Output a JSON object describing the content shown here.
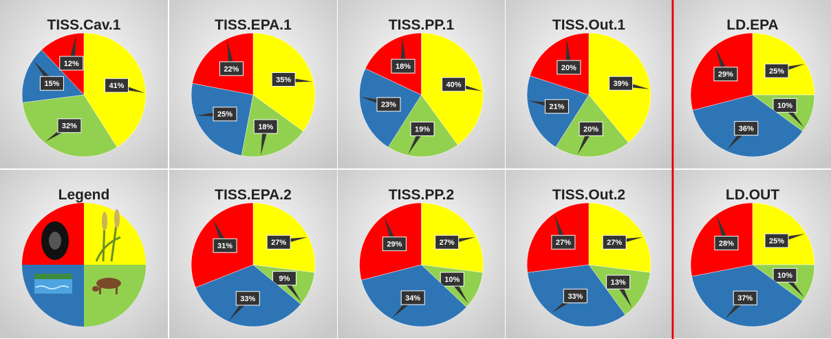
{
  "chart_data": [
    {
      "type": "pie",
      "title": "TISS.Cav.1",
      "values": [
        41,
        32,
        15,
        12
      ],
      "value_labels": [
        "41%",
        "32%",
        "15%",
        "12%"
      ],
      "colors": [
        "#ffff00",
        "#92d050",
        "#2e75b6",
        "#ff0000"
      ]
    },
    {
      "type": "pie",
      "title": "TISS.EPA.1",
      "values": [
        35,
        18,
        25,
        22
      ],
      "value_labels": [
        "35%",
        "18%",
        "25%",
        "22%"
      ],
      "colors": [
        "#ffff00",
        "#92d050",
        "#2e75b6",
        "#ff0000"
      ]
    },
    {
      "type": "pie",
      "title": "TISS.PP.1",
      "values": [
        40,
        19,
        23,
        18
      ],
      "value_labels": [
        "40%",
        "19%",
        "23%",
        "18%"
      ],
      "colors": [
        "#ffff00",
        "#92d050",
        "#2e75b6",
        "#ff0000"
      ]
    },
    {
      "type": "pie",
      "title": "TISS.Out.1",
      "values": [
        39,
        20,
        21,
        20
      ],
      "value_labels": [
        "39%",
        "20%",
        "21%",
        "20%"
      ],
      "colors": [
        "#ffff00",
        "#92d050",
        "#2e75b6",
        "#ff0000"
      ]
    },
    {
      "type": "pie",
      "title": "LD.EPA",
      "values": [
        25,
        10,
        36,
        29
      ],
      "value_labels": [
        "25%",
        "10%",
        "36%",
        "29%"
      ],
      "colors": [
        "#ffff00",
        "#92d050",
        "#2e75b6",
        "#ff0000"
      ]
    },
    {
      "type": "pie",
      "title": "TISS.EPA.2",
      "values": [
        27,
        9,
        33,
        31
      ],
      "value_labels": [
        "27%",
        "9%",
        "33%",
        "31%"
      ],
      "colors": [
        "#ffff00",
        "#92d050",
        "#2e75b6",
        "#ff0000"
      ]
    },
    {
      "type": "pie",
      "title": "TISS.PP.2",
      "values": [
        27,
        10,
        34,
        29
      ],
      "value_labels": [
        "27%",
        "10%",
        "34%",
        "29%"
      ],
      "colors": [
        "#ffff00",
        "#92d050",
        "#2e75b6",
        "#ff0000"
      ]
    },
    {
      "type": "pie",
      "title": "TISS.Out.2",
      "values": [
        27,
        13,
        33,
        27
      ],
      "value_labels": [
        "27%",
        "13%",
        "33%",
        "27%"
      ],
      "colors": [
        "#ffff00",
        "#92d050",
        "#2e75b6",
        "#ff0000"
      ]
    },
    {
      "type": "pie",
      "title": "LD.OUT",
      "values": [
        25,
        10,
        37,
        28
      ],
      "value_labels": [
        "25%",
        "10%",
        "37%",
        "28%"
      ],
      "colors": [
        "#ffff00",
        "#92d050",
        "#2e75b6",
        "#ff0000"
      ]
    }
  ],
  "legend_panel": {
    "title": "Legend"
  }
}
